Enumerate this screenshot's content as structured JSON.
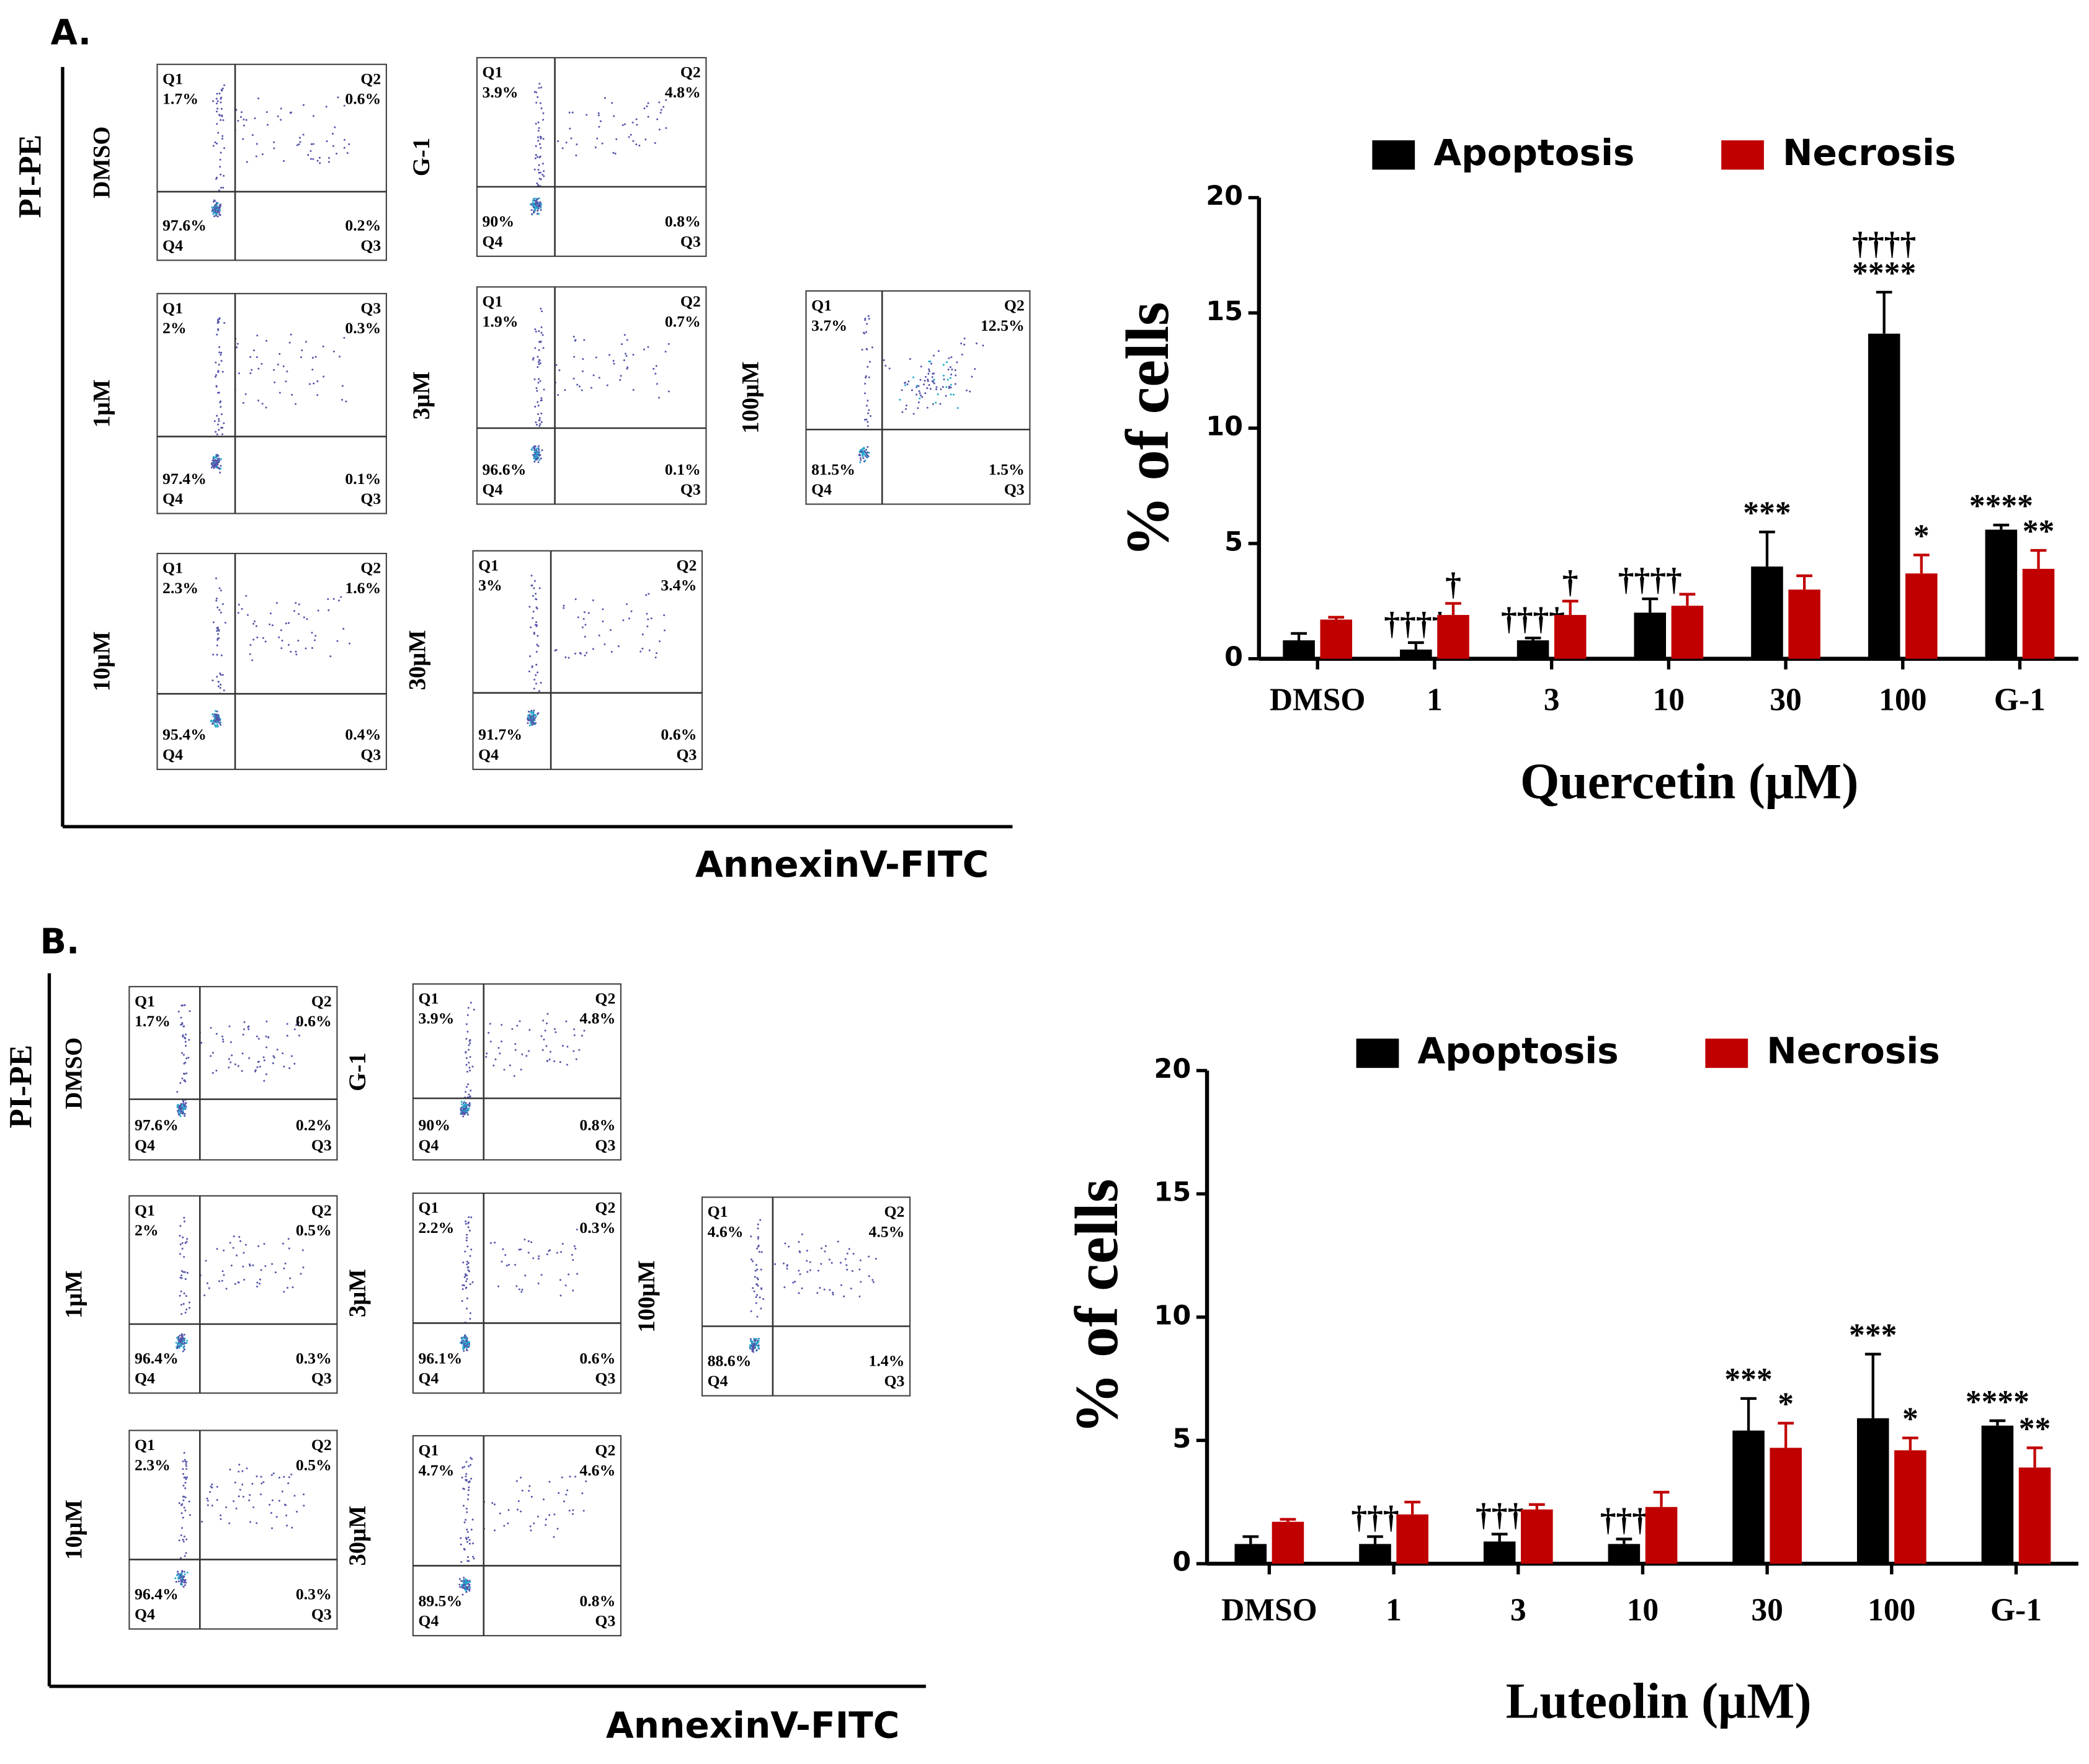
{
  "panels": [
    {
      "label": "A.",
      "y_axis_label": "PI-PE",
      "x_axis_label": "AnnexinV-FITC",
      "plots": [
        {
          "condition": "DMSO",
          "quadrants": [
            {
              "name": "Q1",
              "percent": "1.7%"
            },
            {
              "name": "Q2",
              "percent": "0.6%"
            },
            {
              "name": "Q4",
              "percent": "97.6%"
            },
            {
              "name": "Q3",
              "percent": "0.2%"
            }
          ]
        },
        {
          "condition": "G-1",
          "quadrants": [
            {
              "name": "Q1",
              "percent": "3.9%"
            },
            {
              "name": "Q2",
              "percent": "4.8%"
            },
            {
              "name": "Q4",
              "percent": "90%"
            },
            {
              "name": "Q3",
              "percent": "0.8%"
            }
          ]
        },
        {
          "condition": "1μM",
          "quadrants": [
            {
              "name": "Q1",
              "percent": "2%"
            },
            {
              "name": "Q3",
              "percent": "0.3%"
            },
            {
              "name": "Q4",
              "percent": "97.4%"
            },
            {
              "name": "Q3",
              "percent": "0.1%"
            }
          ]
        },
        {
          "condition": "3μM",
          "quadrants": [
            {
              "name": "Q1",
              "percent": "1.9%"
            },
            {
              "name": "Q2",
              "percent": "0.7%"
            },
            {
              "name": "Q4",
              "percent": "96.6%"
            },
            {
              "name": "Q3",
              "percent": "0.1%"
            }
          ]
        },
        {
          "condition": "100μM",
          "quadrants": [
            {
              "name": "Q1",
              "percent": "3.7%"
            },
            {
              "name": "Q2",
              "percent": "12.5%"
            },
            {
              "name": "Q4",
              "percent": "81.5%"
            },
            {
              "name": "Q3",
              "percent": "1.5%"
            }
          ]
        },
        {
          "condition": "10μM",
          "quadrants": [
            {
              "name": "Q1",
              "percent": "2.3%"
            },
            {
              "name": "Q2",
              "percent": "1.6%"
            },
            {
              "name": "Q4",
              "percent": "95.4%"
            },
            {
              "name": "Q3",
              "percent": "0.4%"
            }
          ]
        },
        {
          "condition": "30μM",
          "quadrants": [
            {
              "name": "Q1",
              "percent": "3%"
            },
            {
              "name": "Q2",
              "percent": "3.4%"
            },
            {
              "name": "Q4",
              "percent": "91.7%"
            },
            {
              "name": "Q3",
              "percent": "0.6%"
            }
          ]
        }
      ],
      "chart_data": {
        "type": "bar",
        "x_label": "Quercetin (μM)",
        "y_label": "% of cells",
        "categories": [
          "DMSO",
          "1",
          "3",
          "10",
          "30",
          "100",
          "G-1"
        ],
        "ylim": [
          0,
          20
        ],
        "yticks": [
          0,
          5,
          10,
          15,
          20
        ],
        "series": [
          {
            "name": "Apoptosis",
            "color": "#000000",
            "values": [
              0.8,
              0.4,
              0.8,
              2.0,
              4.0,
              14.1,
              5.6
            ],
            "errors": [
              0.3,
              0.3,
              0.1,
              0.6,
              1.5,
              1.8,
              0.2
            ],
            "annotations": [
              null,
              [
                "††††"
              ],
              [
                "††††"
              ],
              [
                "††††"
              ],
              [
                "***"
              ],
              [
                "††††",
                "****"
              ],
              [
                "****"
              ]
            ]
          },
          {
            "name": "Necrosis",
            "color": "#c00000",
            "values": [
              1.7,
              1.9,
              1.9,
              2.3,
              3.0,
              3.7,
              3.9
            ],
            "errors": [
              0.1,
              0.5,
              0.6,
              0.5,
              0.6,
              0.8,
              0.8
            ],
            "annotations": [
              null,
              [
                "†"
              ],
              [
                "†"
              ],
              null,
              null,
              [
                "*"
              ],
              [
                "**"
              ]
            ]
          }
        ]
      }
    },
    {
      "label": "B.",
      "y_axis_label": "PI-PE",
      "x_axis_label": "AnnexinV-FITC",
      "plots": [
        {
          "condition": "DMSO",
          "quadrants": [
            {
              "name": "Q1",
              "percent": "1.7%"
            },
            {
              "name": "Q2",
              "percent": "0.6%"
            },
            {
              "name": "Q4",
              "percent": "97.6%"
            },
            {
              "name": "Q3",
              "percent": "0.2%"
            }
          ]
        },
        {
          "condition": "G-1",
          "quadrants": [
            {
              "name": "Q1",
              "percent": "3.9%"
            },
            {
              "name": "Q2",
              "percent": "4.8%"
            },
            {
              "name": "Q4",
              "percent": "90%"
            },
            {
              "name": "Q3",
              "percent": "0.8%"
            }
          ]
        },
        {
          "condition": "1μM",
          "quadrants": [
            {
              "name": "Q1",
              "percent": "2%"
            },
            {
              "name": "Q2",
              "percent": "0.5%"
            },
            {
              "name": "Q4",
              "percent": "96.4%"
            },
            {
              "name": "Q3",
              "percent": "0.3%"
            }
          ]
        },
        {
          "condition": "3μM",
          "quadrants": [
            {
              "name": "Q1",
              "percent": "2.2%"
            },
            {
              "name": "Q2",
              "percent": "0.3%"
            },
            {
              "name": "Q4",
              "percent": "96.1%"
            },
            {
              "name": "Q3",
              "percent": "0.6%"
            }
          ]
        },
        {
          "condition": "100μM",
          "quadrants": [
            {
              "name": "Q1",
              "percent": "4.6%"
            },
            {
              "name": "Q2",
              "percent": "4.5%"
            },
            {
              "name": "Q4",
              "percent": "88.6%"
            },
            {
              "name": "Q3",
              "percent": "1.4%"
            }
          ]
        },
        {
          "condition": "10μM",
          "quadrants": [
            {
              "name": "Q1",
              "percent": "2.3%"
            },
            {
              "name": "Q2",
              "percent": "0.5%"
            },
            {
              "name": "Q4",
              "percent": "96.4%"
            },
            {
              "name": "Q3",
              "percent": "0.3%"
            }
          ]
        },
        {
          "condition": "30μM",
          "quadrants": [
            {
              "name": "Q1",
              "percent": "4.7%"
            },
            {
              "name": "Q2",
              "percent": "4.6%"
            },
            {
              "name": "Q4",
              "percent": "89.5%"
            },
            {
              "name": "Q3",
              "percent": "0.8%"
            }
          ]
        }
      ],
      "chart_data": {
        "type": "bar",
        "x_label": "Luteolin (μM)",
        "y_label": "% of cells",
        "categories": [
          "DMSO",
          "1",
          "3",
          "10",
          "30",
          "100",
          "G-1"
        ],
        "ylim": [
          0,
          20
        ],
        "yticks": [
          0,
          5,
          10,
          15,
          20
        ],
        "series": [
          {
            "name": "Apoptosis",
            "color": "#000000",
            "values": [
              0.8,
              0.8,
              0.9,
              0.8,
              5.4,
              5.9,
              5.6
            ],
            "errors": [
              0.3,
              0.3,
              0.3,
              0.2,
              1.3,
              2.6,
              0.2
            ],
            "annotations": [
              null,
              [
                "†††"
              ],
              [
                "†††"
              ],
              [
                "†††"
              ],
              [
                "***"
              ],
              [
                "***"
              ],
              [
                "****"
              ]
            ]
          },
          {
            "name": "Necrosis",
            "color": "#c00000",
            "values": [
              1.7,
              2.0,
              2.2,
              2.3,
              4.7,
              4.6,
              3.9
            ],
            "errors": [
              0.1,
              0.5,
              0.2,
              0.6,
              1.0,
              0.5,
              0.8
            ],
            "annotations": [
              null,
              null,
              null,
              null,
              [
                "*"
              ],
              [
                "*"
              ],
              [
                "**"
              ]
            ]
          }
        ]
      }
    }
  ]
}
